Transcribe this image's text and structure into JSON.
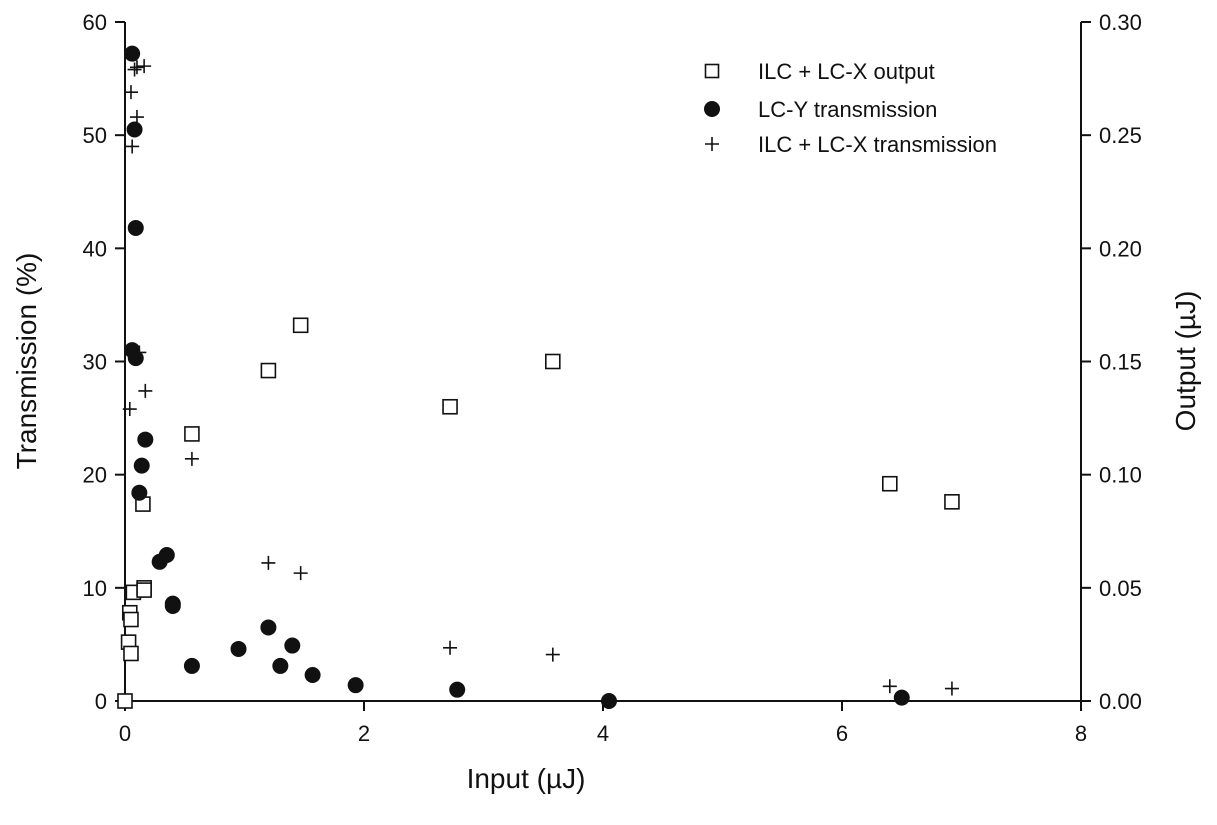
{
  "chart_data": {
    "type": "scatter",
    "title": "",
    "xlabel": "Input (µJ)",
    "ylabel": "Transmission (%)",
    "y2label": "Output (µJ)",
    "xlim": [
      0,
      8
    ],
    "ylim": [
      0,
      60
    ],
    "y2lim": [
      0,
      0.3
    ],
    "x_ticks": [
      "0",
      "2",
      "4",
      "6",
      "8"
    ],
    "y_ticks": [
      "0",
      "10",
      "20",
      "30",
      "40",
      "50",
      "60"
    ],
    "y2_ticks": [
      "0.00",
      "0.05",
      "0.10",
      "0.15",
      "0.20",
      "0.25",
      "0.30"
    ],
    "grid": false,
    "legend_position": "top-right",
    "series": [
      {
        "name": "ILC + LC-X output",
        "marker": "open-square",
        "axis": "right",
        "x": [
          0.0,
          0.03,
          0.04,
          0.05,
          0.05,
          0.07,
          0.15,
          0.16,
          0.16,
          0.56,
          1.2,
          1.47,
          2.72,
          3.58,
          6.4,
          6.92
        ],
        "y": [
          0.0,
          0.026,
          0.039,
          0.036,
          0.021,
          0.048,
          0.087,
          0.05,
          0.049,
          0.118,
          0.146,
          0.166,
          0.13,
          0.15,
          0.096,
          0.088
        ]
      },
      {
        "name": "LC-Y transmission",
        "marker": "filled-circle",
        "axis": "left",
        "x": [
          0.06,
          0.08,
          0.09,
          0.06,
          0.09,
          0.12,
          0.14,
          0.17,
          0.29,
          0.35,
          0.4,
          0.4,
          0.56,
          0.95,
          1.2,
          1.3,
          1.4,
          1.57,
          1.93,
          2.78,
          4.05,
          6.5
        ],
        "y": [
          57.2,
          50.5,
          41.8,
          31.0,
          30.3,
          18.4,
          20.8,
          23.1,
          12.3,
          12.9,
          8.6,
          8.4,
          3.1,
          4.6,
          6.5,
          3.1,
          4.9,
          2.3,
          1.4,
          1.0,
          0.0,
          0.3
        ]
      },
      {
        "name": "ILC + LC-X transmission",
        "marker": "plus",
        "axis": "left",
        "x": [
          0.05,
          0.06,
          0.08,
          0.1,
          0.1,
          0.16,
          0.12,
          0.04,
          0.17,
          0.56,
          1.2,
          1.47,
          2.72,
          3.58,
          6.4,
          6.92
        ],
        "y": [
          53.8,
          49.0,
          55.8,
          51.6,
          56.0,
          56.1,
          30.8,
          25.8,
          27.4,
          21.4,
          12.2,
          11.3,
          4.7,
          4.1,
          1.3,
          1.1
        ]
      }
    ]
  }
}
